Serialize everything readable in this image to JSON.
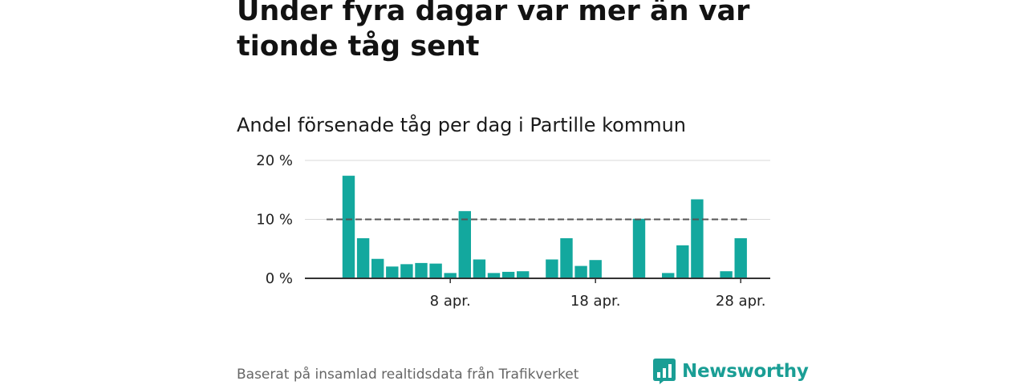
{
  "headline": "Under fyra dagar var mer än var tionde tåg sent",
  "subtitle": "Andel försenade tåg per dag i Partille kommun",
  "source": "Baserat på insamlad realtidsdata från Trafikverket",
  "brand": {
    "name": "Newsworthy",
    "logo_icon": "bar-chart-speech-bubble-icon"
  },
  "colors": {
    "bar": "#13a89e",
    "reference_line": "#555555",
    "grid": "#d9d9d9",
    "brand": "#1a9e95"
  },
  "chart_data": {
    "type": "bar",
    "x": [
      "2024-04-01",
      "2024-04-02",
      "2024-04-03",
      "2024-04-04",
      "2024-04-05",
      "2024-04-06",
      "2024-04-07",
      "2024-04-08",
      "2024-04-09",
      "2024-04-10",
      "2024-04-11",
      "2024-04-12",
      "2024-04-13",
      "2024-04-14",
      "2024-04-15",
      "2024-04-16",
      "2024-04-17",
      "2024-04-18",
      "2024-04-19",
      "2024-04-20",
      "2024-04-21",
      "2024-04-22",
      "2024-04-23",
      "2024-04-24",
      "2024-04-25",
      "2024-04-26",
      "2024-04-27",
      "2024-04-28",
      "2024-04-29"
    ],
    "values": [
      17.4,
      6.8,
      3.3,
      2.0,
      2.4,
      2.6,
      2.5,
      0.9,
      11.4,
      3.2,
      0.9,
      1.1,
      1.2,
      null,
      3.2,
      6.8,
      2.1,
      3.1,
      null,
      null,
      10.1,
      null,
      0.9,
      5.6,
      13.4,
      null,
      1.2,
      6.8,
      null
    ],
    "reference_line": 10,
    "ylim": [
      0,
      20
    ],
    "yticks": [
      0,
      10,
      20
    ],
    "ytick_labels": [
      "0 %",
      "10 %",
      "20 %"
    ],
    "xticks": [
      "2024-04-08",
      "2024-04-18",
      "2024-04-28"
    ],
    "xtick_labels": [
      "8 apr.",
      "18 apr.",
      "28 apr."
    ],
    "grid": true
  }
}
